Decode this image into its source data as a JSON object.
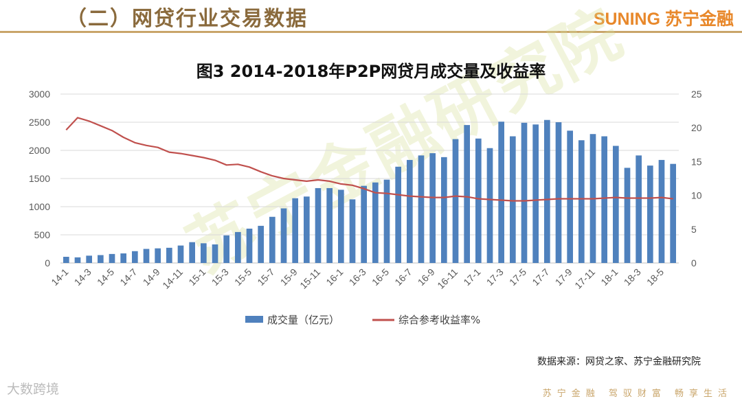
{
  "header": {
    "section_title": "（二）网贷行业交易数据",
    "brand": "SUNING 苏宁金融"
  },
  "watermark": "苏宁金融研究院",
  "footer": {
    "source": "数据来源：网贷之家、苏宁金融研究院",
    "logo_text": "大数跨境",
    "motto": "苏宁金融 驾驭财富 畅享生活"
  },
  "colors": {
    "bar": "#4f81bd",
    "line": "#c0504d",
    "accent_gold": "#c9a56a",
    "brand_orange": "#e8882b"
  },
  "chart_data": {
    "type": "bar",
    "title": "图3  2014-2018年P2P网贷月成交量及收益率",
    "y_left": {
      "min": 0,
      "max": 3000,
      "ticks": [
        "0",
        "500",
        "1000",
        "1500",
        "2000",
        "2500",
        "3000"
      ]
    },
    "y_right": {
      "min": 0,
      "max": 25,
      "ticks": [
        "0",
        "5",
        "10",
        "15",
        "20",
        "25"
      ]
    },
    "grid": true,
    "legend_position": "bottom",
    "x_tick_labels": [
      "14-1",
      "14-3",
      "14-5",
      "14-7",
      "14-9",
      "14-11",
      "15-1",
      "15-3",
      "15-5",
      "15-7",
      "15-9",
      "15-11",
      "16-1",
      "16-3",
      "16-5",
      "16-7",
      "16-9",
      "16-11",
      "17-1",
      "17-3",
      "17-5",
      "17-7",
      "17-9",
      "17-11",
      "18-1",
      "18-3",
      "18-5"
    ],
    "categories": [
      "14-1",
      "14-2",
      "14-3",
      "14-4",
      "14-5",
      "14-6",
      "14-7",
      "14-8",
      "14-9",
      "14-10",
      "14-11",
      "14-12",
      "15-1",
      "15-2",
      "15-3",
      "15-4",
      "15-5",
      "15-6",
      "15-7",
      "15-8",
      "15-9",
      "15-10",
      "15-11",
      "15-12",
      "16-1",
      "16-2",
      "16-3",
      "16-4",
      "16-5",
      "16-6",
      "16-7",
      "16-8",
      "16-9",
      "16-10",
      "16-11",
      "16-12",
      "17-1",
      "17-2",
      "17-3",
      "17-4",
      "17-5",
      "17-6",
      "17-7",
      "17-8",
      "17-9",
      "17-10",
      "17-11",
      "17-12",
      "18-1",
      "18-2",
      "18-3",
      "18-4",
      "18-5",
      "18-6"
    ],
    "series": [
      {
        "name": "成交量（亿元）",
        "type": "bar",
        "axis": "left",
        "values": [
          110,
          100,
          130,
          140,
          160,
          170,
          210,
          250,
          260,
          270,
          310,
          370,
          350,
          330,
          490,
          550,
          610,
          660,
          820,
          970,
          1150,
          1180,
          1330,
          1330,
          1300,
          1130,
          1370,
          1430,
          1480,
          1710,
          1830,
          1910,
          1950,
          1880,
          2200,
          2450,
          2210,
          2040,
          2510,
          2250,
          2490,
          2460,
          2540,
          2500,
          2350,
          2180,
          2290,
          2250,
          2080,
          1690,
          1910,
          1730,
          1830,
          1760
        ]
      },
      {
        "name": "综合参考收益率%",
        "type": "line",
        "axis": "right",
        "values": [
          19.7,
          21.5,
          21.0,
          20.3,
          19.6,
          18.6,
          17.8,
          17.4,
          17.1,
          16.4,
          16.2,
          15.9,
          15.6,
          15.2,
          14.5,
          14.6,
          14.2,
          13.5,
          12.9,
          12.5,
          12.3,
          12.1,
          12.3,
          12.1,
          11.7,
          11.5,
          11.0,
          10.4,
          10.3,
          10.1,
          9.9,
          9.8,
          9.7,
          9.7,
          9.9,
          9.8,
          9.5,
          9.4,
          9.3,
          9.2,
          9.2,
          9.3,
          9.4,
          9.5,
          9.5,
          9.5,
          9.5,
          9.6,
          9.7,
          9.6,
          9.6,
          9.6,
          9.7,
          9.5
        ]
      }
    ]
  }
}
